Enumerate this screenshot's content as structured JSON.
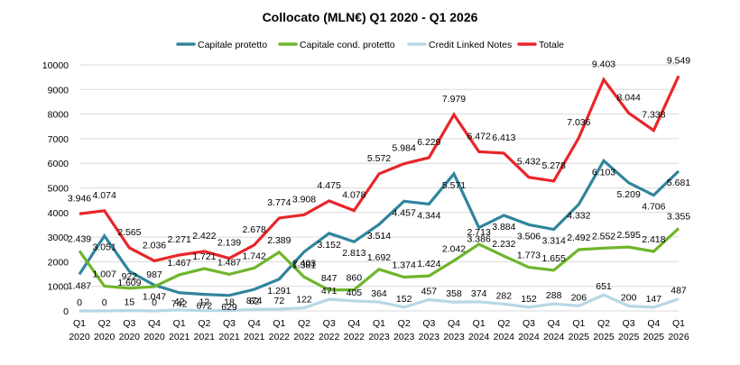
{
  "chart_data": {
    "type": "line",
    "title": "Collocato (MLN€) Q1 2020 - Q1 2026",
    "xlabel": "",
    "ylabel": "",
    "ylim": [
      0,
      10000
    ],
    "yticks": [
      "0",
      "1000",
      "2000",
      "3000",
      "4000",
      "5000",
      "6000",
      "7000",
      "8000",
      "9000",
      "10000"
    ],
    "grid": true,
    "legend": "top",
    "categories": [
      {
        "q": "Q1",
        "y": "2020"
      },
      {
        "q": "Q2",
        "y": "2020"
      },
      {
        "q": "Q3",
        "y": "2020"
      },
      {
        "q": "Q4",
        "y": "2020"
      },
      {
        "q": "Q1",
        "y": "2021"
      },
      {
        "q": "Q2",
        "y": "2021"
      },
      {
        "q": "Q3",
        "y": "2021"
      },
      {
        "q": "Q4",
        "y": "2021"
      },
      {
        "q": "Q1",
        "y": "2022"
      },
      {
        "q": "Q2",
        "y": "2022"
      },
      {
        "q": "Q3",
        "y": "2022"
      },
      {
        "q": "Q4",
        "y": "2022"
      },
      {
        "q": "Q1",
        "y": "2023"
      },
      {
        "q": "Q2",
        "y": "2023"
      },
      {
        "q": "Q3",
        "y": "2023"
      },
      {
        "q": "Q4",
        "y": "2023"
      },
      {
        "q": "Q1",
        "y": "2024"
      },
      {
        "q": "Q2",
        "y": "2024"
      },
      {
        "q": "Q3",
        "y": "2024"
      },
      {
        "q": "Q4",
        "y": "2024"
      },
      {
        "q": "Q1",
        "y": "2025"
      },
      {
        "q": "Q2",
        "y": "2025"
      },
      {
        "q": "Q3",
        "y": "2025"
      },
      {
        "q": "Q4",
        "y": "2025"
      },
      {
        "q": "Q1",
        "y": "2026"
      }
    ],
    "series": [
      {
        "name": "Capitale protetto",
        "color": "#31859c",
        "values": [
          1487,
          3051,
          1609,
          1047,
          742,
          672,
          629,
          874,
          1291,
          2403,
          3152,
          2813,
          3514,
          4457,
          4344,
          5571,
          3386,
          3884,
          3506,
          3314,
          4332,
          6103,
          5209,
          4706,
          5681
        ],
        "labels": [
          "1.487",
          "3.051",
          "1.609",
          "1.047",
          "742",
          "672",
          "629",
          "874",
          "1.291",
          "2.403",
          "3.152",
          "2.813",
          "3.514",
          "4.457",
          "4.344",
          "5.571",
          "3.386",
          "3.884",
          "3.506",
          "3.314",
          "4.332",
          "6.103",
          "5.209",
          "4.706",
          "5.681"
        ]
      },
      {
        "name": "Capitale cond. protetto",
        "color": "#6fb52c",
        "values": [
          2439,
          1007,
          922,
          987,
          1467,
          1721,
          1487,
          1742,
          2389,
          1381,
          847,
          860,
          1692,
          1374,
          1424,
          2042,
          2713,
          2232,
          1773,
          1655,
          2492,
          2552,
          2595,
          2418,
          3355
        ],
        "labels": [
          "2.439",
          "1.007",
          "922",
          "987",
          "1.467",
          "1.721",
          "1.487",
          "1.742",
          "2.389",
          "1.381",
          "847",
          "860",
          "1.692",
          "1.374",
          "1.424",
          "2.042",
          "2.713",
          "2.232",
          "1.773",
          "1.655",
          "2.492",
          "2.552",
          "2.595",
          "2.418",
          "3.355"
        ]
      },
      {
        "name": "Credit Linked Notes",
        "color": "#b7d7e3",
        "values": [
          0,
          0,
          15,
          0,
          42,
          12,
          18,
          62,
          72,
          122,
          471,
          405,
          364,
          152,
          457,
          358,
          374,
          282,
          152,
          288,
          206,
          651,
          200,
          147,
          487
        ],
        "labels": [
          "0",
          "0",
          "15",
          "0",
          "42",
          "12",
          "18",
          "62",
          "72",
          "122",
          "471",
          "405",
          "364",
          "152",
          "457",
          "358",
          "374",
          "282",
          "152",
          "288",
          "206",
          "651",
          "200",
          "147",
          "487"
        ]
      },
      {
        "name": "Totale",
        "color": "#e8262a",
        "values": [
          3946,
          4074,
          2565,
          2036,
          2271,
          2422,
          2139,
          2678,
          3774,
          3908,
          4475,
          4078,
          5572,
          5984,
          6229,
          7979,
          6472,
          6413,
          5432,
          5278,
          7036,
          9403,
          8044,
          7338,
          9549
        ],
        "labels": [
          "3.946",
          "4.074",
          "2.565",
          "2.036",
          "2.271",
          "2.422",
          "2.139",
          "2.678",
          "3.774",
          "3.908",
          "4.475",
          "4.078",
          "5.572",
          "5.984",
          "6.229",
          "7.979",
          "6.472",
          "6.413",
          "5.432",
          "5.278",
          "7.036",
          "9.403",
          "8.044",
          "7.338",
          "9.549"
        ]
      }
    ]
  }
}
